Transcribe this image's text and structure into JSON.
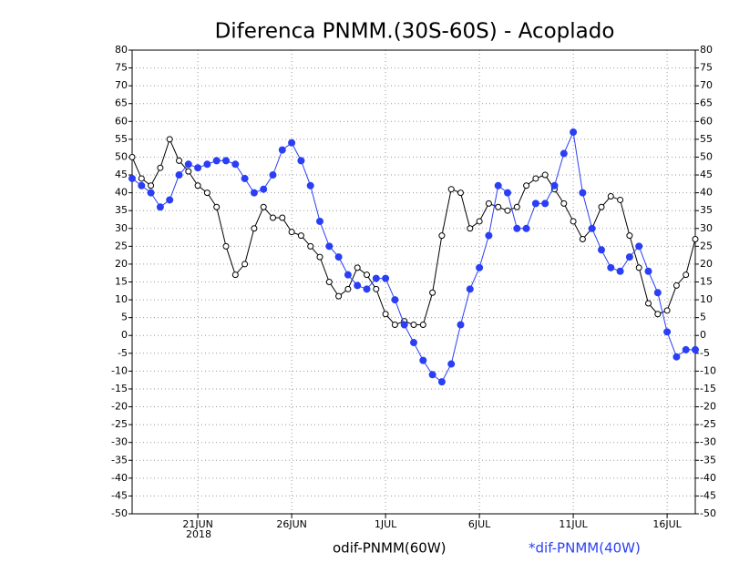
{
  "chart_data": {
    "type": "line",
    "title": "Diferenca PNMM.(30S-60S) - Acoplado",
    "x_year_label": "2018",
    "x": [
      17.5,
      18,
      18.5,
      19,
      19.5,
      20,
      20.5,
      21,
      21.5,
      22,
      22.5,
      23,
      23.5,
      24,
      24.5,
      25,
      25.5,
      26,
      26.5,
      27,
      27.5,
      28,
      28.5,
      29,
      29.5,
      30,
      30.5,
      31,
      31.5,
      32,
      32.5,
      33,
      33.5,
      34,
      34.5,
      35,
      35.5,
      36,
      36.5,
      37,
      37.5,
      38,
      38.5,
      39,
      39.5,
      40,
      40.5,
      41,
      41.5,
      42,
      42.5,
      43,
      43.5,
      44,
      44.5,
      45,
      45.5,
      46,
      46.5,
      47,
      47.5
    ],
    "series": [
      {
        "name": "odif-PNMM(60W)",
        "color": "#000000",
        "marker": "open-circle",
        "values": [
          50,
          44,
          42,
          47,
          55,
          49,
          46,
          42,
          40,
          36,
          25,
          17,
          20,
          30,
          36,
          33,
          33,
          29,
          28,
          25,
          22,
          15,
          11,
          13,
          19,
          17,
          13,
          6,
          3,
          4,
          3,
          3,
          12,
          28,
          41,
          40,
          30,
          32,
          37,
          36,
          35,
          36,
          42,
          44,
          45,
          41,
          37,
          32,
          27,
          30,
          36,
          39,
          38,
          28,
          19,
          9,
          6,
          7,
          14,
          17,
          27
        ]
      },
      {
        "name": "*dif-PNMM(40W)",
        "color": "#2a3ff5",
        "marker": "filled-circle",
        "values": [
          44,
          42,
          40,
          36,
          38,
          45,
          48,
          47,
          48,
          49,
          49,
          48,
          44,
          40,
          41,
          45,
          52,
          54,
          49,
          42,
          32,
          25,
          22,
          17,
          14,
          13,
          16,
          16,
          10,
          3,
          -2,
          -7,
          -11,
          -13,
          -8,
          3,
          13,
          19,
          28,
          42,
          40,
          30,
          30,
          37,
          37,
          42,
          51,
          57,
          40,
          30,
          24,
          19,
          18,
          22,
          25,
          18,
          12,
          1,
          -6,
          -4,
          -4
        ]
      }
    ],
    "xlim": [
      17.5,
      47.5
    ],
    "xticks": [
      {
        "value": 21,
        "label": "21JUN"
      },
      {
        "value": 26,
        "label": "26JUN"
      },
      {
        "value": 31,
        "label": "1JUL"
      },
      {
        "value": 36,
        "label": "6JUL"
      },
      {
        "value": 41,
        "label": "11JUL"
      },
      {
        "value": 46,
        "label": "16JUL"
      }
    ],
    "ylim": [
      -50,
      80
    ],
    "yticks": [
      -50,
      -45,
      -40,
      -35,
      -30,
      -25,
      -20,
      -15,
      -10,
      -5,
      0,
      5,
      10,
      15,
      20,
      25,
      30,
      35,
      40,
      45,
      50,
      55,
      60,
      65,
      70,
      75,
      80
    ],
    "y2lim": [
      -50,
      80
    ],
    "y2ticks": [
      -50,
      -45,
      -40,
      -35,
      -30,
      -25,
      -20,
      -15,
      -10,
      -5,
      0,
      5,
      10,
      15,
      20,
      25,
      30,
      35,
      40,
      45,
      50,
      55,
      60,
      65,
      70,
      75,
      80
    ],
    "grid": true
  }
}
